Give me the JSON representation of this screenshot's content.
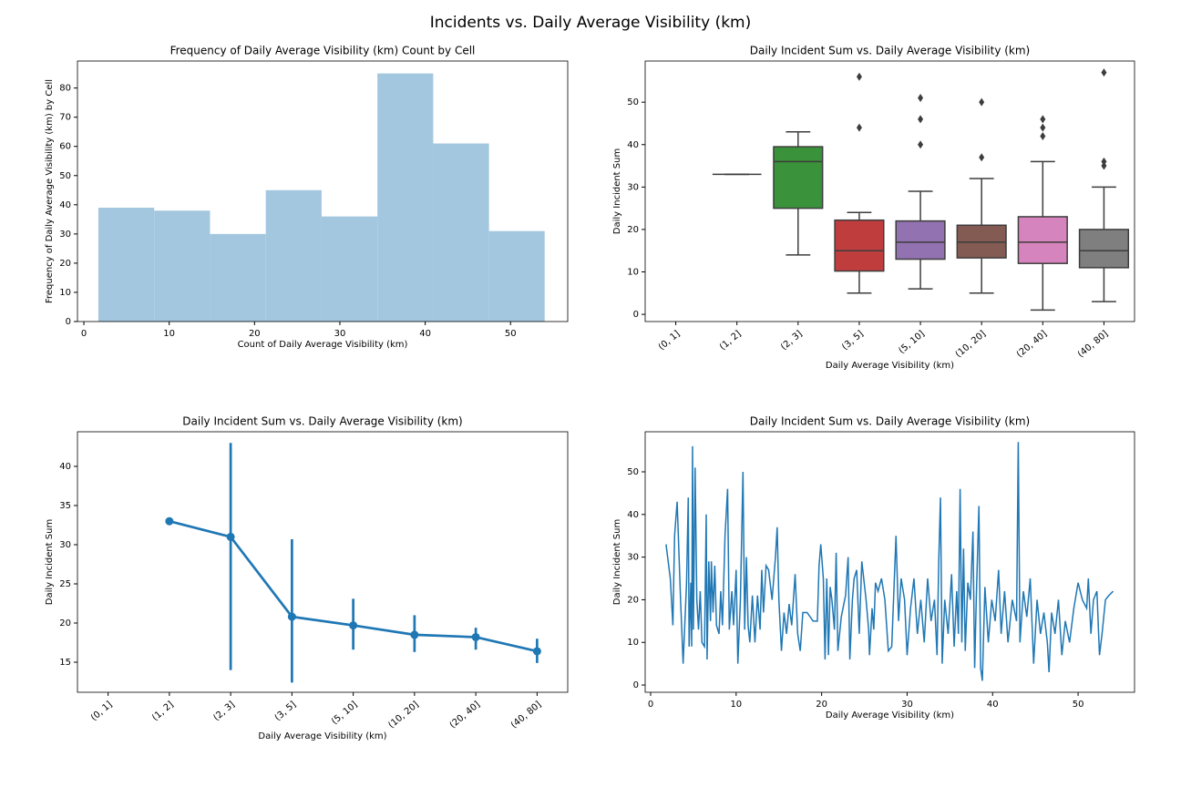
{
  "title": "Incidents vs. Daily Average Visibility (km)",
  "chart_data": [
    {
      "type": "histogram",
      "title": "Frequency of Daily Average Visibility (km) Count by Cell",
      "x_label": "Count of Daily Average Visibility (km)",
      "y_label": "Frequency of Daily Average Visibility (km) by Cell",
      "bins": [
        1.7,
        8.24,
        14.78,
        21.32,
        27.86,
        34.4,
        40.94,
        47.48,
        54.0
      ],
      "values": [
        39,
        38,
        30,
        45,
        36,
        85,
        61,
        31
      ],
      "color": "#a3c7df",
      "xlim": [
        -0.75,
        56.7
      ],
      "xticks": [
        0,
        10,
        20,
        30,
        40,
        50
      ],
      "ylim": [
        0,
        89.25
      ],
      "yticks": [
        0,
        10,
        20,
        30,
        40,
        50,
        60,
        70,
        80
      ]
    },
    {
      "type": "box",
      "title": "Daily Incident Sum vs. Daily Average Visibility (km)",
      "x_label": "Daily Average Visibility (km)",
      "y_label": "Daily Incident Sum",
      "categories": [
        "(0, 1]",
        "(1, 2]",
        "(2, 3]",
        "(3, 5]",
        "(5, 10]",
        "(10, 20]",
        "(20, 40]",
        "(40, 80]"
      ],
      "boxes": [
        null,
        {
          "low": 33,
          "q1": 33,
          "median": 33,
          "q3": 33,
          "high": 33,
          "outliers": [],
          "color": "#e1812c"
        },
        {
          "low": 14,
          "q1": 25,
          "median": 36,
          "q3": 39.5,
          "high": 43,
          "outliers": [],
          "color": "#3a923a"
        },
        {
          "low": 5,
          "q1": 10.2,
          "median": 15,
          "q3": 22.2,
          "high": 24,
          "outliers": [
            44,
            56
          ],
          "color": "#c03d3e"
        },
        {
          "low": 6,
          "q1": 13,
          "median": 17,
          "q3": 22,
          "high": 29,
          "outliers": [
            40,
            46,
            51
          ],
          "color": "#9372b2"
        },
        {
          "low": 5,
          "q1": 13.3,
          "median": 17,
          "q3": 21,
          "high": 32,
          "outliers": [
            37,
            50
          ],
          "color": "#845b53"
        },
        {
          "low": 1,
          "q1": 12,
          "median": 17,
          "q3": 23,
          "high": 36,
          "outliers": [
            42,
            44,
            46
          ],
          "color": "#d684bd"
        },
        {
          "low": 3,
          "q1": 11,
          "median": 15,
          "q3": 20,
          "high": 30,
          "outliers": [
            35,
            36,
            57
          ],
          "color": "#7f7f7f"
        }
      ],
      "ylim": [
        -1.7,
        59.7
      ],
      "yticks": [
        0,
        10,
        20,
        30,
        40,
        50
      ]
    },
    {
      "type": "point",
      "title": "Daily Incident Sum vs. Daily Average Visibility (km)",
      "x_label": "Daily Average Visibility (km)",
      "y_label": "Daily Incident Sum",
      "categories": [
        "(0, 1]",
        "(1, 2]",
        "(2, 3]",
        "(3, 5]",
        "(5, 10]",
        "(10, 20]",
        "(20, 40]",
        "(40, 80]"
      ],
      "values": [
        null,
        33,
        31,
        20.8,
        19.7,
        18.5,
        18.2,
        16.4
      ],
      "ci_low": [
        null,
        null,
        14,
        12.4,
        16.6,
        16.3,
        16.6,
        14.9
      ],
      "ci_high": [
        null,
        null,
        43,
        30.7,
        23.1,
        21.0,
        19.4,
        18.0
      ],
      "color": "#1f77b4",
      "ylim": [
        11.16,
        44.42
      ],
      "yticks": [
        15,
        20,
        25,
        30,
        35,
        40
      ]
    },
    {
      "type": "line",
      "title": "Daily Incident Sum vs. Daily Average Visibility (km)",
      "x_label": "Daily Average Visibility (km)",
      "y_label": "Daily Incident Sum",
      "color": "#1f77b4",
      "x": [
        1.8,
        2.3,
        2.6,
        2.8,
        3.1,
        3.5,
        3.8,
        4.2,
        4.4,
        4.5,
        4.7,
        4.8,
        4.9,
        5.0,
        5.2,
        5.4,
        5.6,
        5.8,
        6.0,
        6.3,
        6.5,
        6.6,
        6.8,
        7.0,
        7.1,
        7.3,
        7.5,
        7.7,
        8.0,
        8.2,
        8.4,
        8.7,
        9.0,
        9.2,
        9.5,
        9.7,
        10.0,
        10.2,
        10.5,
        10.8,
        11.0,
        11.2,
        11.4,
        11.6,
        11.9,
        12.2,
        12.5,
        12.8,
        13.0,
        13.2,
        13.5,
        13.8,
        14.2,
        14.6,
        14.8,
        15.0,
        15.3,
        15.6,
        15.9,
        16.2,
        16.5,
        16.9,
        17.2,
        17.5,
        17.8,
        18.3,
        19.0,
        19.5,
        19.7,
        19.9,
        20.2,
        20.4,
        20.6,
        20.8,
        21.0,
        21.2,
        21.5,
        21.7,
        21.9,
        22.3,
        22.8,
        23.1,
        23.3,
        23.6,
        23.8,
        24.1,
        24.4,
        24.7,
        25.2,
        25.5,
        25.6,
        25.9,
        26.1,
        26.3,
        26.6,
        27.0,
        27.4,
        27.8,
        28.2,
        28.7,
        29.0,
        29.3,
        29.7,
        30.0,
        30.4,
        30.8,
        31.2,
        31.6,
        32.0,
        32.4,
        32.8,
        33.2,
        33.5,
        33.7,
        33.9,
        34.1,
        34.4,
        34.8,
        35.2,
        35.5,
        35.8,
        36.0,
        36.2,
        36.4,
        36.6,
        36.8,
        37.1,
        37.4,
        37.7,
        37.9,
        38.1,
        38.4,
        38.6,
        38.8,
        39.1,
        39.5,
        39.9,
        40.3,
        40.7,
        41.0,
        41.4,
        41.8,
        42.3,
        42.8,
        43.0,
        43.2,
        43.6,
        44.0,
        44.4,
        44.8,
        45.2,
        45.6,
        46.0,
        46.4,
        46.6,
        46.9,
        47.3,
        47.7,
        48.1,
        48.5,
        49.0,
        49.5,
        50.0,
        50.5,
        51.0,
        51.2,
        51.5,
        51.8,
        52.2,
        52.5,
        52.8,
        53.2,
        53.6,
        54.1
      ],
      "values": [
        33,
        25,
        14,
        35,
        43,
        20,
        5,
        24,
        44,
        9,
        24,
        9,
        56,
        13,
        51,
        20,
        13,
        22,
        10,
        9,
        40,
        6,
        29,
        15,
        29,
        17,
        28,
        14,
        12,
        22,
        14,
        35,
        46,
        13,
        22,
        14,
        27,
        5,
        20,
        50,
        13,
        30,
        14,
        10,
        21,
        10,
        21,
        13,
        27,
        17,
        28,
        27,
        20,
        30,
        37,
        20,
        8,
        17,
        12,
        19,
        14,
        26,
        12,
        8,
        17,
        17,
        15,
        15,
        28,
        33,
        25,
        6,
        25,
        7,
        23,
        20,
        13,
        31,
        8,
        16,
        21,
        30,
        6,
        20,
        25,
        27,
        12,
        29,
        20,
        13,
        7,
        18,
        13,
        24,
        22,
        25,
        20,
        8,
        9,
        35,
        15,
        25,
        20,
        7,
        18,
        25,
        12,
        20,
        10,
        25,
        15,
        20,
        7,
        29,
        44,
        5,
        20,
        12,
        26,
        9,
        22,
        12,
        46,
        10,
        32,
        8,
        24,
        20,
        36,
        4,
        21,
        42,
        4,
        1,
        23,
        10,
        20,
        15,
        27,
        12,
        22,
        10,
        20,
        15,
        57,
        10,
        22,
        16,
        25,
        5,
        20,
        12,
        17,
        10,
        3,
        17,
        12,
        20,
        7,
        15,
        10,
        18,
        24,
        20,
        18,
        25,
        12,
        20,
        22,
        7,
        12,
        20,
        21,
        22
      ],
      "xlim": [
        -0.64,
        56.6
      ],
      "xticks": [
        0,
        10,
        20,
        30,
        40,
        50
      ],
      "ylim": [
        -1.7,
        59.4
      ],
      "yticks": [
        0,
        10,
        20,
        30,
        40,
        50
      ]
    }
  ]
}
